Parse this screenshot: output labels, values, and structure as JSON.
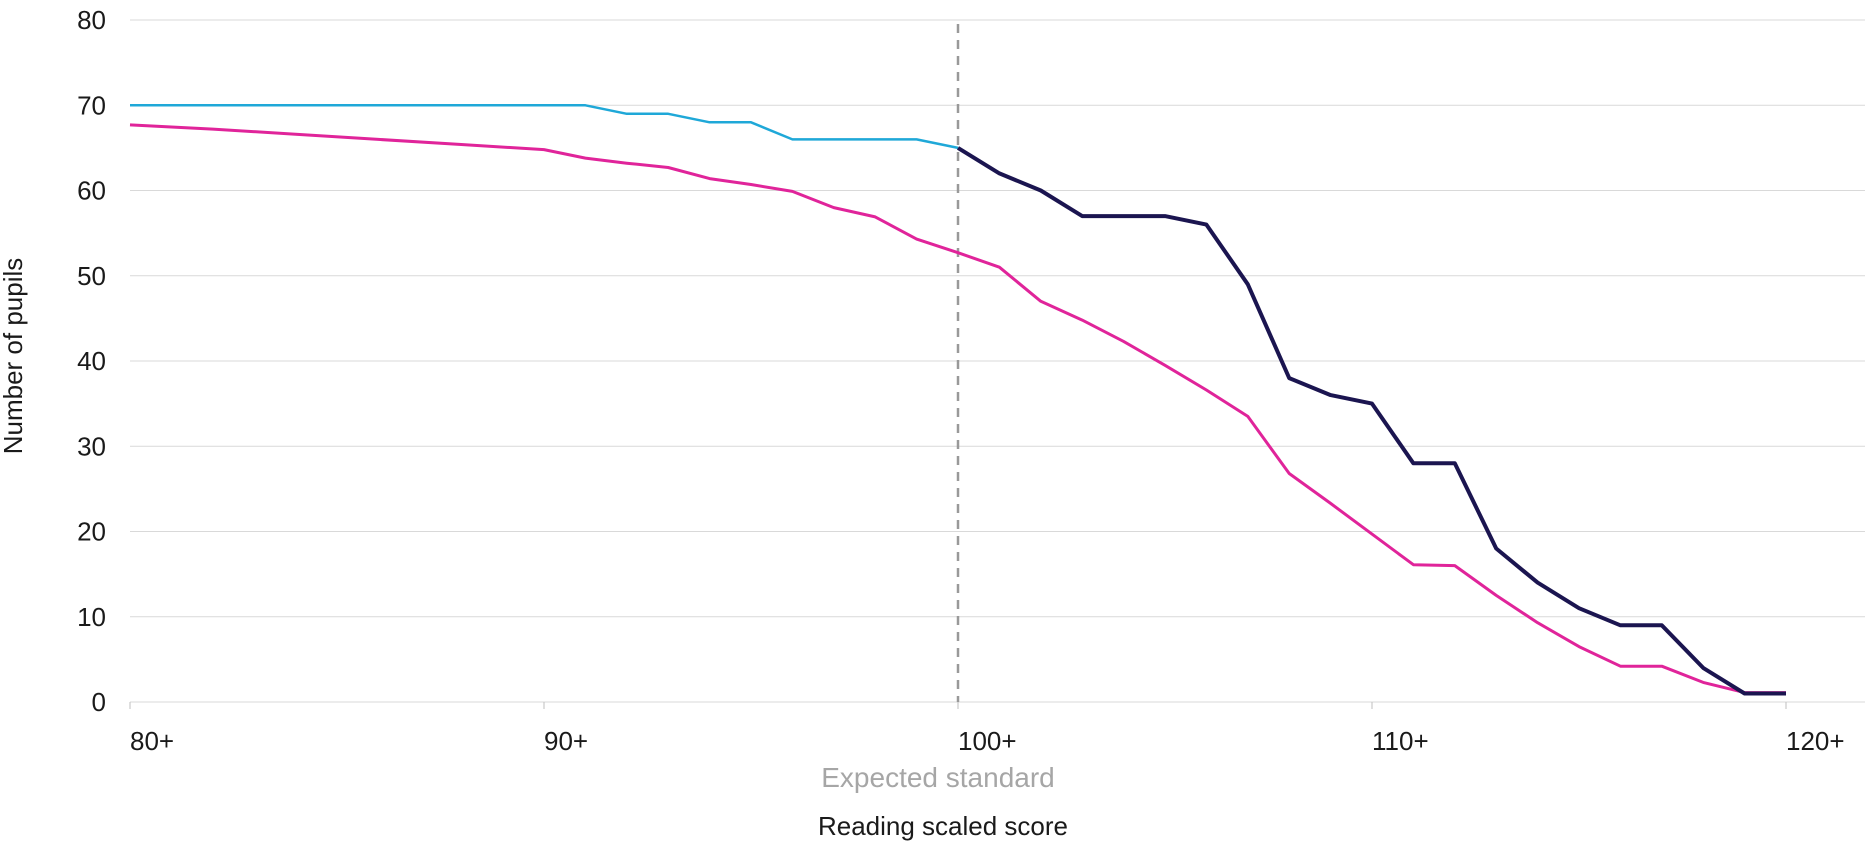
{
  "chart_data": {
    "type": "line",
    "xlabel": "Reading scaled score",
    "ylabel": "Number of pupils",
    "xlim": [
      80,
      120
    ],
    "ylim": [
      0,
      80
    ],
    "x_ticks": [
      80,
      90,
      100,
      110,
      120
    ],
    "x_tick_labels": [
      "80+",
      "90+",
      "100+",
      "110+",
      "120+"
    ],
    "y_ticks": [
      0,
      10,
      20,
      30,
      40,
      50,
      60,
      70,
      80
    ],
    "grid": "horizontal",
    "annotations": [
      {
        "text": "Expected standard",
        "x": 100,
        "style": "dashed-vertical-line"
      }
    ],
    "series": [
      {
        "color_below_expected": "#1fa8d8",
        "color_above_expected": "#1b1550",
        "x": [
          80,
          81,
          82,
          83,
          84,
          85,
          86,
          87,
          88,
          89,
          90,
          91,
          92,
          93,
          94,
          95,
          96,
          97,
          98,
          99,
          100,
          101,
          102,
          103,
          104,
          105,
          106,
          107,
          108,
          109,
          110,
          111,
          112,
          113,
          114,
          115,
          116,
          117,
          118,
          119,
          120
        ],
        "values": [
          70,
          70,
          70,
          70,
          70,
          70,
          70,
          70,
          70,
          70,
          70,
          70,
          69,
          69,
          68,
          68,
          66,
          66,
          66,
          66,
          65,
          62,
          60,
          57,
          57,
          57,
          56,
          49,
          38,
          36,
          35,
          28,
          28,
          18,
          14,
          11,
          9,
          9,
          4,
          1,
          1
        ]
      },
      {
        "color": "#e0249a",
        "x": [
          80,
          82,
          84,
          86,
          88,
          90,
          91,
          92,
          93,
          94,
          95,
          96,
          97,
          98,
          99,
          100,
          101,
          102,
          103,
          104,
          105,
          106,
          107,
          108,
          109,
          110,
          111,
          112,
          113,
          114,
          115,
          116,
          117,
          118,
          119,
          120
        ],
        "values": [
          67.7,
          67.2,
          66.6,
          66.0,
          65.4,
          64.8,
          63.8,
          63.2,
          62.7,
          61.4,
          60.7,
          59.9,
          58.0,
          56.9,
          54.3,
          52.7,
          51.0,
          47.0,
          44.8,
          42.3,
          39.5,
          36.6,
          33.5,
          26.8,
          23.3,
          19.7,
          16.1,
          16.0,
          12.5,
          9.3,
          6.5,
          4.2,
          4.2,
          2.3,
          1.1,
          1.1
        ]
      }
    ]
  }
}
